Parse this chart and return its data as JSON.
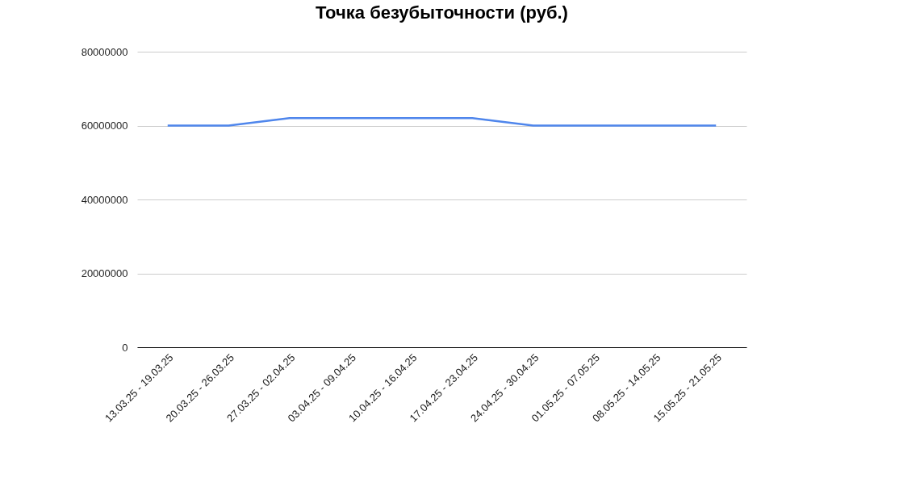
{
  "chart_data": {
    "type": "line",
    "title": "Точка безубыточности (руб.)",
    "categories": [
      "13.03.25 - 19.03.25",
      "20.03.25 - 26.03.25",
      "27.03.25 - 02.04.25",
      "03.04.25 - 09.04.25",
      "10.04.25 - 16.04.25",
      "17.04.25 - 23.04.25",
      "24.04.25 - 30.04.25",
      "01.05.25 - 07.05.25",
      "08.05.25 - 14.05.25",
      "15.05.25 - 21.05.25"
    ],
    "series": [
      {
        "color": "#4f86ec",
        "values": [
          60000000,
          60000000,
          62000000,
          62000000,
          62000000,
          62000000,
          60000000,
          60000000,
          60000000,
          60000000
        ]
      }
    ],
    "ylim": [
      0,
      80000000
    ],
    "yticks": [
      0,
      20000000,
      40000000,
      60000000,
      80000000
    ],
    "grid": "y",
    "marker": "none",
    "line_style": "solid"
  }
}
